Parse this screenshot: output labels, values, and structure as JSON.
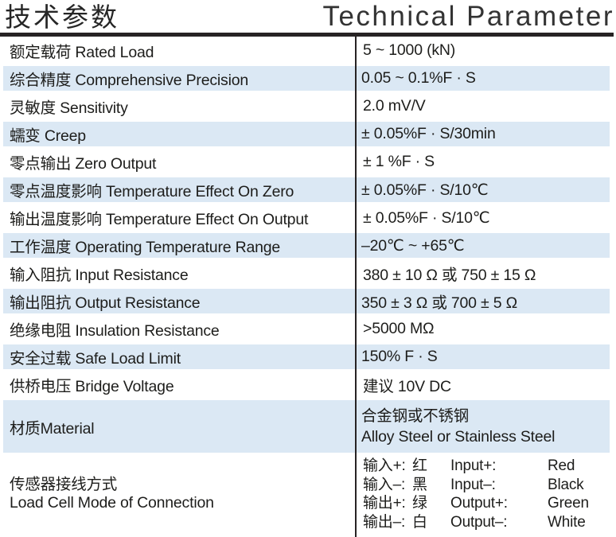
{
  "header": {
    "title_zh": "技术参数",
    "title_en": "Technical Parameter"
  },
  "table": {
    "rows": [
      {
        "label": "额定载荷 Rated Load",
        "value": "5 ~ 1000 (kN)"
      },
      {
        "label": "综合精度 Comprehensive Precision",
        "value": "0.05 ~ 0.1%F · S"
      },
      {
        "label": "灵敏度 Sensitivity",
        "value": "2.0 mV/V"
      },
      {
        "label": "蠕变 Creep",
        "value": "± 0.05%F · S/30min"
      },
      {
        "label": "零点输出 Zero Output",
        "value": "± 1 %F · S"
      },
      {
        "label": "零点温度影响 Temperature Effect On Zero",
        "value": "± 0.05%F · S/10℃"
      },
      {
        "label": "输出温度影响 Temperature Effect On Output",
        "value": "± 0.05%F · S/10℃"
      },
      {
        "label": "工作温度 Operating Temperature Range",
        "value": "–20℃ ~ +65℃"
      },
      {
        "label": "输入阻抗 Input Resistance",
        "value": "380 ± 10 Ω 或 750 ± 15 Ω"
      },
      {
        "label": "输出阻抗 Output Resistance",
        "value": "350 ± 3 Ω 或 700 ± 5 Ω"
      },
      {
        "label": "绝缘电阻 Insulation Resistance",
        "value": ">5000 MΩ"
      },
      {
        "label": "安全过载 Safe Load Limit",
        "value": "150% F · S"
      },
      {
        "label": "供桥电压 Bridge Voltage",
        "value": "建议 10V DC"
      }
    ],
    "material": {
      "label": "材质Material",
      "value_line1": "合金钢或不锈钢",
      "value_line2": "Alloy Steel or Stainless Steel"
    },
    "connection": {
      "label_line1": "传感器接线方式",
      "label_line2": "Load Cell Mode of Connection",
      "entries": [
        {
          "zh": "输入+:",
          "zh_color": "红",
          "en": "Input+:",
          "en_color": "Red"
        },
        {
          "zh": "输入–:",
          "zh_color": "黑",
          "en": "Input–:",
          "en_color": "Black"
        },
        {
          "zh": "输出+:",
          "zh_color": "绿",
          "en": "Output+:",
          "en_color": "Green"
        },
        {
          "zh": "输出–:",
          "zh_color": "白",
          "en": "Output–:",
          "en_color": "White"
        }
      ]
    }
  },
  "colors": {
    "row_highlight": "#dbe8f4",
    "text": "#1d1d1b",
    "rule": "#272324"
  }
}
